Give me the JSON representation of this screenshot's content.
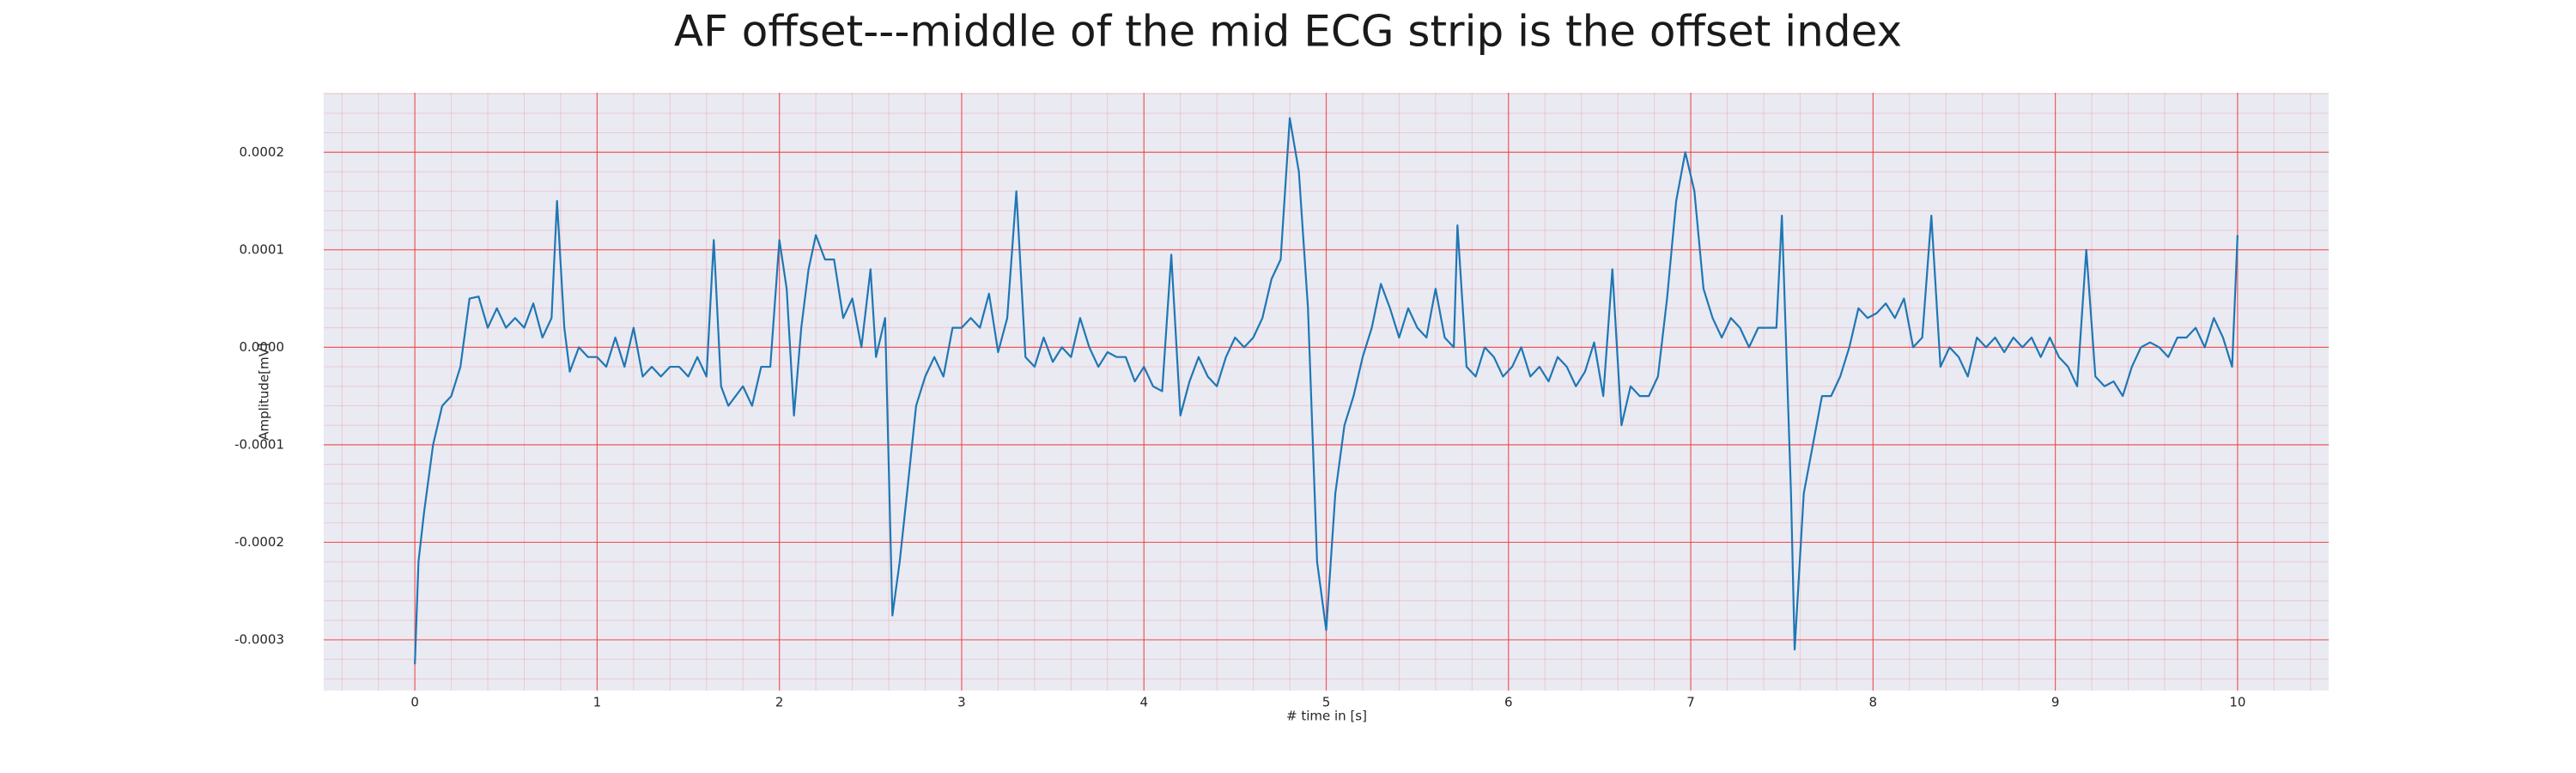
{
  "chart_data": {
    "type": "line",
    "title": "AF offset---middle of the mid ECG strip is the offset index",
    "xlabel": "# time in [s]",
    "ylabel": "Amplitude[mV]",
    "color": "#1f77b4",
    "background": "#eaeaf2",
    "grid": true,
    "grid_color": "#f03c3c",
    "minor_grid": true,
    "xlim": [
      -0.5,
      10.5
    ],
    "ylim": [
      -0.000352,
      0.000261
    ],
    "xticks": [
      0,
      1,
      2,
      3,
      4,
      5,
      6,
      7,
      8,
      9,
      10
    ],
    "yticks": [
      0.0002,
      0.0001,
      {
        "value": 0,
        "label": "0.0000"
      },
      -0.0001,
      -0.0002,
      -0.0003
    ],
    "x": [
      0,
      0.02,
      0.05,
      0.1,
      0.15,
      0.2,
      0.25,
      0.3,
      0.35,
      0.4,
      0.45,
      0.5,
      0.55,
      0.6,
      0.65,
      0.7,
      0.75,
      0.78,
      0.82,
      0.85,
      0.9,
      0.95,
      1.0,
      1.05,
      1.1,
      1.15,
      1.2,
      1.25,
      1.3,
      1.35,
      1.4,
      1.45,
      1.5,
      1.55,
      1.6,
      1.64,
      1.68,
      1.72,
      1.8,
      1.85,
      1.9,
      1.95,
      2.0,
      2.04,
      2.08,
      2.12,
      2.16,
      2.2,
      2.25,
      2.3,
      2.35,
      2.4,
      2.45,
      2.5,
      2.53,
      2.58,
      2.62,
      2.66,
      2.7,
      2.75,
      2.8,
      2.85,
      2.9,
      2.95,
      3.0,
      3.05,
      3.1,
      3.15,
      3.2,
      3.25,
      3.3,
      3.35,
      3.4,
      3.45,
      3.5,
      3.55,
      3.6,
      3.65,
      3.7,
      3.75,
      3.8,
      3.85,
      3.9,
      3.95,
      4.0,
      4.05,
      4.1,
      4.15,
      4.2,
      4.25,
      4.3,
      4.35,
      4.4,
      4.45,
      4.5,
      4.55,
      4.6,
      4.65,
      4.7,
      4.75,
      4.8,
      4.85,
      4.9,
      4.95,
      5.0,
      5.05,
      5.1,
      5.15,
      5.2,
      5.25,
      5.3,
      5.35,
      5.4,
      5.45,
      5.5,
      5.55,
      5.6,
      5.65,
      5.7,
      5.72,
      5.77,
      5.82,
      5.87,
      5.92,
      5.97,
      6.02,
      6.07,
      6.12,
      6.17,
      6.22,
      6.27,
      6.32,
      6.37,
      6.42,
      6.47,
      6.52,
      6.57,
      6.62,
      6.67,
      6.72,
      6.77,
      6.82,
      6.87,
      6.92,
      6.97,
      7.02,
      7.07,
      7.12,
      7.17,
      7.22,
      7.27,
      7.32,
      7.37,
      7.42,
      7.47,
      7.5,
      7.55,
      7.57,
      7.62,
      7.67,
      7.72,
      7.77,
      7.82,
      7.87,
      7.92,
      7.97,
      8.02,
      8.07,
      8.12,
      8.17,
      8.22,
      8.27,
      8.32,
      8.37,
      8.42,
      8.47,
      8.52,
      8.57,
      8.62,
      8.67,
      8.72,
      8.77,
      8.82,
      8.87,
      8.92,
      8.97,
      9.02,
      9.07,
      9.12,
      9.17,
      9.22,
      9.27,
      9.32,
      9.37,
      9.42,
      9.47,
      9.52,
      9.57,
      9.62,
      9.67,
      9.72,
      9.77,
      9.82,
      9.87,
      9.92,
      9.97,
      10.0
    ],
    "values": [
      -0.000325,
      -0.00022,
      -0.00017,
      -0.0001,
      -6e-05,
      -5e-05,
      -2e-05,
      5e-05,
      5.2e-05,
      2e-05,
      4e-05,
      2e-05,
      3e-05,
      2e-05,
      4.5e-05,
      1e-05,
      3e-05,
      0.00015,
      2e-05,
      -2.5e-05,
      0,
      -1e-05,
      -1e-05,
      -2e-05,
      1e-05,
      -2e-05,
      2e-05,
      -3e-05,
      -2e-05,
      -3e-05,
      -2e-05,
      -2e-05,
      -3e-05,
      -1e-05,
      -3e-05,
      0.00011,
      -4e-05,
      -6e-05,
      -4e-05,
      -6e-05,
      -2e-05,
      -2e-05,
      0.00011,
      6e-05,
      -7e-05,
      2e-05,
      8e-05,
      0.000115,
      9e-05,
      9e-05,
      3e-05,
      5e-05,
      0,
      8e-05,
      -1e-05,
      3e-05,
      -0.000275,
      -0.00022,
      -0.00015,
      -6e-05,
      -3e-05,
      -1e-05,
      -3e-05,
      2e-05,
      2e-05,
      3e-05,
      2e-05,
      5.5e-05,
      -5e-06,
      3e-05,
      0.00016,
      -1e-05,
      -2e-05,
      1e-05,
      -1.5e-05,
      0,
      -1e-05,
      3e-05,
      0,
      -2e-05,
      -5e-06,
      -1e-05,
      -1e-05,
      -3.5e-05,
      -2e-05,
      -4e-05,
      -4.5e-05,
      9.5e-05,
      -7e-05,
      -3.5e-05,
      -1e-05,
      -3e-05,
      -4e-05,
      -1e-05,
      1e-05,
      0,
      1e-05,
      3e-05,
      7e-05,
      9e-05,
      0.000235,
      0.00018,
      4e-05,
      -0.00022,
      -0.00029,
      -0.00015,
      -8e-05,
      -5e-05,
      -1e-05,
      2e-05,
      6.5e-05,
      4e-05,
      1e-05,
      4e-05,
      2e-05,
      1e-05,
      6e-05,
      1e-05,
      0,
      0.000125,
      -2e-05,
      -3e-05,
      0,
      -1e-05,
      -3e-05,
      -2e-05,
      0,
      -3e-05,
      -2e-05,
      -3.5e-05,
      -1e-05,
      -2e-05,
      -4e-05,
      -2.5e-05,
      5e-06,
      -5e-05,
      8e-05,
      -8e-05,
      -4e-05,
      -5e-05,
      -5e-05,
      -3e-05,
      5e-05,
      0.00015,
      0.0002,
      0.00016,
      6e-05,
      3e-05,
      1e-05,
      3e-05,
      2e-05,
      0,
      2e-05,
      2e-05,
      2e-05,
      0.000135,
      -0.00015,
      -0.00031,
      -0.00015,
      -0.0001,
      -5e-05,
      -5e-05,
      -3e-05,
      0,
      4e-05,
      3e-05,
      3.5e-05,
      4.5e-05,
      3e-05,
      5e-05,
      0,
      1e-05,
      0.000135,
      -2e-05,
      0,
      -1e-05,
      -3e-05,
      1e-05,
      0,
      1e-05,
      -5e-06,
      1e-05,
      0,
      1e-05,
      -1e-05,
      1e-05,
      -1e-05,
      -2e-05,
      -4e-05,
      0.0001,
      -3e-05,
      -4e-05,
      -3.5e-05,
      -5e-05,
      -2e-05,
      0,
      5e-06,
      0,
      -1e-05,
      1e-05,
      1e-05,
      2e-05,
      0,
      3e-05,
      1e-05,
      -2e-05,
      0.000115
    ]
  }
}
